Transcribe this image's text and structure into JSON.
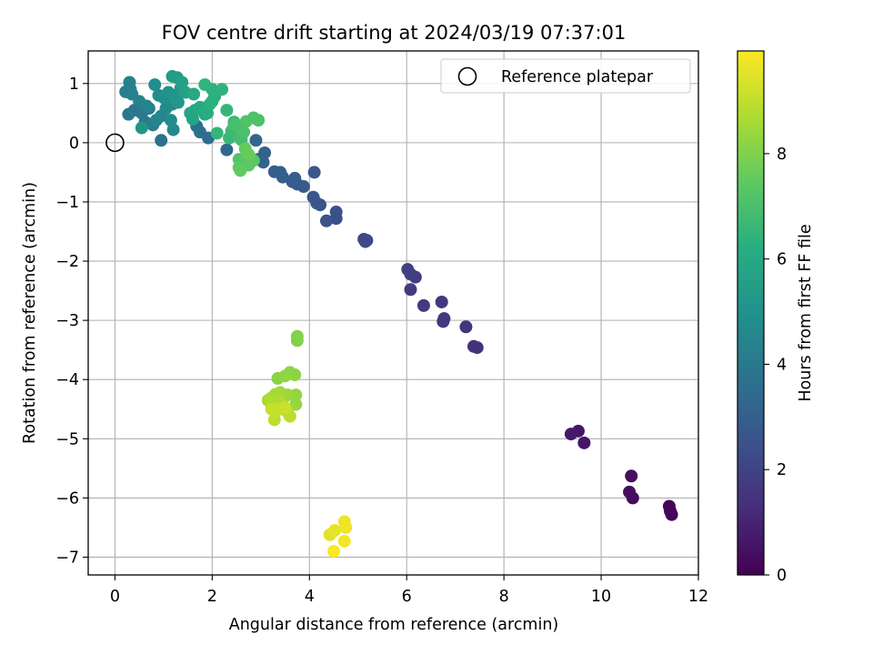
{
  "chart_data": {
    "type": "scatter",
    "title": "FOV centre drift starting at 2024/03/19 07:37:01",
    "xlabel": "Angular distance from reference (arcmin)",
    "ylabel": "Rotation from reference (arcmin)",
    "xlim": [
      -0.55,
      12.0
    ],
    "ylim": [
      -7.3,
      1.55
    ],
    "xticks": [
      0,
      2,
      4,
      6,
      8,
      10,
      12
    ],
    "yticks": [
      1,
      0,
      -1,
      -2,
      -3,
      -4,
      -5,
      -6,
      -7
    ],
    "xtick_labels": [
      "0",
      "2",
      "4",
      "6",
      "8",
      "10",
      "12"
    ],
    "ytick_labels": [
      "1",
      "0",
      "−1",
      "−2",
      "−3",
      "−4",
      "−5",
      "−6",
      "−7"
    ],
    "grid": true,
    "legend": {
      "position": "top-right",
      "entries": [
        "Reference platepar"
      ]
    },
    "reference_point": {
      "x": 0,
      "y": 0
    },
    "colorbar": {
      "label": "Hours from first FF file",
      "colormap": "viridis",
      "range": [
        0,
        9.95
      ],
      "ticks": [
        0,
        2,
        4,
        6,
        8
      ],
      "tick_labels": [
        "0",
        "2",
        "4",
        "6",
        "8"
      ],
      "colors": [
        "#440154",
        "#472c7a",
        "#3b528b",
        "#2c728e",
        "#21918c",
        "#28ae80",
        "#5ec962",
        "#addc30",
        "#fde725"
      ]
    },
    "series": [
      {
        "points": [
          [
            11.45,
            -6.28,
            0.1
          ],
          [
            11.42,
            -6.22,
            0.15
          ],
          [
            11.4,
            -6.14,
            0.2
          ],
          [
            10.65,
            -6.0,
            0.3
          ],
          [
            10.58,
            -5.9,
            0.35
          ],
          [
            10.62,
            -5.63,
            0.4
          ],
          [
            9.65,
            -5.07,
            0.6
          ],
          [
            9.53,
            -4.87,
            0.65
          ],
          [
            9.38,
            -4.92,
            0.7
          ],
          [
            7.45,
            -3.46,
            1.4
          ],
          [
            7.38,
            -3.44,
            1.45
          ],
          [
            7.22,
            -3.11,
            1.5
          ],
          [
            6.75,
            -3.02,
            1.55
          ],
          [
            6.77,
            -2.97,
            1.6
          ],
          [
            6.72,
            -2.69,
            1.65
          ],
          [
            6.35,
            -2.75,
            1.7
          ],
          [
            6.08,
            -2.48,
            1.75
          ],
          [
            6.18,
            -2.27,
            1.8
          ],
          [
            6.08,
            -2.22,
            1.85
          ],
          [
            6.02,
            -2.14,
            1.9
          ],
          [
            5.18,
            -1.65,
            2.1
          ],
          [
            5.12,
            -1.63,
            2.15
          ],
          [
            5.15,
            -1.67,
            2.2
          ],
          [
            4.55,
            -1.28,
            2.4
          ],
          [
            4.55,
            -1.17,
            2.45
          ],
          [
            4.35,
            -1.32,
            2.5
          ],
          [
            4.22,
            -1.05,
            2.55
          ],
          [
            4.15,
            -1.02,
            2.6
          ],
          [
            4.08,
            -0.92,
            2.65
          ],
          [
            4.1,
            -0.5,
            2.7
          ],
          [
            3.88,
            -0.74,
            2.75
          ],
          [
            3.75,
            -0.7,
            2.8
          ],
          [
            3.65,
            -0.66,
            2.85
          ],
          [
            3.7,
            -0.6,
            2.9
          ],
          [
            3.4,
            -0.5,
            2.95
          ],
          [
            3.28,
            -0.49,
            3.0
          ],
          [
            3.45,
            -0.58,
            3.05
          ],
          [
            3.08,
            -0.17,
            3.1
          ],
          [
            2.95,
            -0.28,
            3.15
          ],
          [
            3.05,
            -0.33,
            3.2
          ],
          [
            2.9,
            0.04,
            3.25
          ],
          [
            2.3,
            -0.12,
            3.4
          ],
          [
            1.92,
            0.08,
            3.5
          ],
          [
            1.75,
            0.18,
            3.6
          ],
          [
            1.68,
            0.28,
            3.65
          ],
          [
            0.95,
            0.04,
            3.7
          ],
          [
            0.28,
            0.48,
            3.9
          ],
          [
            0.4,
            0.55,
            3.95
          ],
          [
            0.55,
            0.5,
            4.0
          ],
          [
            0.62,
            0.35,
            4.05
          ],
          [
            0.78,
            0.3,
            4.1
          ],
          [
            0.7,
            0.58,
            4.15
          ],
          [
            0.22,
            0.86,
            4.2
          ],
          [
            0.32,
            0.9,
            4.25
          ],
          [
            0.3,
            1.02,
            4.3
          ],
          [
            0.35,
            0.82,
            4.35
          ],
          [
            0.5,
            0.7,
            4.4
          ],
          [
            0.65,
            0.62,
            4.45
          ],
          [
            0.85,
            0.38,
            4.5
          ],
          [
            0.95,
            0.45,
            4.55
          ],
          [
            1.05,
            0.58,
            4.6
          ],
          [
            1.18,
            0.65,
            4.65
          ],
          [
            1.2,
            0.22,
            4.7
          ],
          [
            1.15,
            0.38,
            4.75
          ],
          [
            0.82,
            0.98,
            4.8
          ],
          [
            0.9,
            0.8,
            4.85
          ],
          [
            1.0,
            0.76,
            4.9
          ],
          [
            1.05,
            0.8,
            4.95
          ],
          [
            1.1,
            0.85,
            5.0
          ],
          [
            1.2,
            0.8,
            5.05
          ],
          [
            1.25,
            0.72,
            5.1
          ],
          [
            0.55,
            0.25,
            5.15
          ],
          [
            1.3,
            0.68,
            5.2
          ],
          [
            1.35,
            0.92,
            5.3
          ],
          [
            1.18,
            1.12,
            5.4
          ],
          [
            1.28,
            1.1,
            5.5
          ],
          [
            1.38,
            1.02,
            5.6
          ],
          [
            1.45,
            0.85,
            5.7
          ],
          [
            1.55,
            0.5,
            5.8
          ],
          [
            1.6,
            0.4,
            5.85
          ],
          [
            1.65,
            0.55,
            5.9
          ],
          [
            1.62,
            0.82,
            6.0
          ],
          [
            1.75,
            0.6,
            6.05
          ],
          [
            1.85,
            0.48,
            6.1
          ],
          [
            1.9,
            0.5,
            6.15
          ],
          [
            2.05,
            0.78,
            6.2
          ],
          [
            2.0,
            0.7,
            6.25
          ],
          [
            1.95,
            0.65,
            6.3
          ],
          [
            2.0,
            0.9,
            6.35
          ],
          [
            2.2,
            0.9,
            6.4
          ],
          [
            1.85,
            0.98,
            6.45
          ],
          [
            2.1,
            0.16,
            6.5
          ],
          [
            2.3,
            0.55,
            6.55
          ],
          [
            2.35,
            0.08,
            6.6
          ],
          [
            2.4,
            0.2,
            6.65
          ],
          [
            2.45,
            0.35,
            6.7
          ],
          [
            2.5,
            0.3,
            6.75
          ],
          [
            2.55,
            0.1,
            6.8
          ],
          [
            2.6,
            0.05,
            6.85
          ],
          [
            2.62,
            0.2,
            6.9
          ],
          [
            2.45,
            0.3,
            6.95
          ],
          [
            2.65,
            0.18,
            7.0
          ],
          [
            2.85,
            0.42,
            7.05
          ],
          [
            2.95,
            0.38,
            7.1
          ],
          [
            2.7,
            0.36,
            7.15
          ],
          [
            2.55,
            -0.28,
            7.2
          ],
          [
            2.6,
            -0.32,
            7.25
          ],
          [
            2.7,
            -0.25,
            7.3
          ],
          [
            2.85,
            -0.3,
            7.35
          ],
          [
            2.75,
            -0.38,
            7.4
          ],
          [
            2.55,
            -0.42,
            7.45
          ],
          [
            2.58,
            -0.47,
            7.5
          ],
          [
            2.68,
            -0.1,
            7.55
          ],
          [
            2.75,
            -0.2,
            7.6
          ],
          [
            3.75,
            -3.34,
            8.0
          ],
          [
            3.75,
            -3.27,
            8.05
          ],
          [
            3.35,
            -3.98,
            8.1
          ],
          [
            3.6,
            -3.88,
            8.15
          ],
          [
            3.7,
            -3.92,
            8.2
          ],
          [
            3.5,
            -3.94,
            8.25
          ],
          [
            3.72,
            -4.26,
            8.3
          ],
          [
            3.72,
            -4.42,
            8.35
          ],
          [
            3.55,
            -4.26,
            8.4
          ],
          [
            3.48,
            -4.3,
            8.45
          ],
          [
            3.4,
            -4.22,
            8.5
          ],
          [
            3.3,
            -4.25,
            8.55
          ],
          [
            3.2,
            -4.32,
            8.6
          ],
          [
            3.15,
            -4.35,
            8.65
          ],
          [
            3.25,
            -4.4,
            8.7
          ],
          [
            3.4,
            -4.38,
            8.75
          ],
          [
            3.45,
            -4.45,
            8.8
          ],
          [
            3.55,
            -4.55,
            8.85
          ],
          [
            3.6,
            -4.62,
            8.9
          ],
          [
            3.28,
            -4.68,
            8.95
          ],
          [
            3.3,
            -4.55,
            9.0
          ],
          [
            3.38,
            -4.5,
            9.05
          ],
          [
            3.22,
            -4.5,
            9.1
          ],
          [
            3.5,
            -4.48,
            9.15
          ],
          [
            4.42,
            -6.62,
            9.5
          ],
          [
            4.52,
            -6.55,
            9.6
          ],
          [
            4.72,
            -6.4,
            9.7
          ],
          [
            4.75,
            -6.5,
            9.75
          ],
          [
            4.72,
            -6.73,
            9.8
          ],
          [
            4.5,
            -6.9,
            9.9
          ]
        ]
      }
    ]
  }
}
